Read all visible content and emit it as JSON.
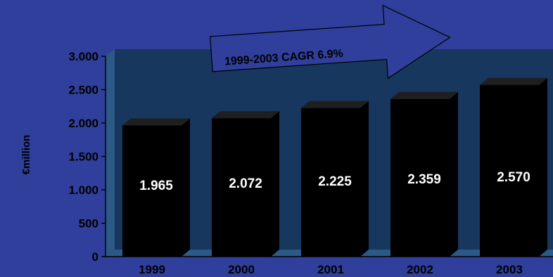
{
  "chart_data": {
    "type": "bar",
    "categories": [
      "1999",
      "2000",
      "2001",
      "2002",
      "2003"
    ],
    "values": [
      1965,
      2072,
      2225,
      2359,
      2570
    ],
    "value_labels": [
      "1.965",
      "2.072",
      "2.225",
      "2.359",
      "2.570"
    ],
    "ylabel": "€million",
    "ylim": [
      0,
      3000
    ],
    "yticks": [
      0,
      500,
      1000,
      1500,
      2000,
      2500,
      3000
    ],
    "ytick_labels": [
      "0",
      "500",
      "1.000",
      "1.500",
      "2.000",
      "2.500",
      "3.000"
    ],
    "annotation": "1999-2003 CAGR 6.9%",
    "grid": false,
    "colors": {
      "background": "#2f3f9b",
      "plot_back_wall": "#17375e",
      "plot_floor": "#2c5a86",
      "bar_front": "#000000",
      "bar_top": "#1f1f1f",
      "data_label": "#ffffff"
    }
  }
}
